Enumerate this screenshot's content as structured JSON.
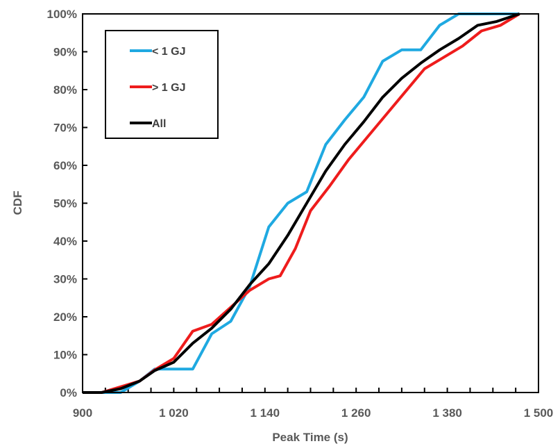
{
  "chart_data": {
    "type": "line",
    "title": "",
    "xlabel": "Peak Time (s)",
    "ylabel": "CDF",
    "xlim": [
      900,
      1500
    ],
    "ylim": [
      0,
      1
    ],
    "grid": false,
    "legend_position": "top-left",
    "x_ticks": [
      900,
      1020,
      1140,
      1260,
      1380,
      1500
    ],
    "x_tick_labels": [
      "900",
      "1 020",
      "1 140",
      "1 260",
      "1 380",
      "1 500"
    ],
    "y_ticks": [
      0,
      0.1,
      0.2,
      0.3,
      0.4,
      0.5,
      0.6,
      0.7,
      0.8,
      0.9,
      1.0
    ],
    "y_tick_labels": [
      "0%",
      "10%",
      "20%",
      "30%",
      "40%",
      "50%",
      "60%",
      "70%",
      "80%",
      "90%",
      "100%"
    ],
    "series": [
      {
        "name": "< 1 GJ",
        "color": "#1fa9e1",
        "points": [
          [
            900,
            0
          ],
          [
            925,
            0
          ],
          [
            950,
            0
          ],
          [
            975,
            0.03
          ],
          [
            995,
            0.062
          ],
          [
            1020,
            0.062
          ],
          [
            1045,
            0.062
          ],
          [
            1070,
            0.155
          ],
          [
            1095,
            0.188
          ],
          [
            1120,
            0.28
          ],
          [
            1145,
            0.437
          ],
          [
            1170,
            0.5
          ],
          [
            1195,
            0.53
          ],
          [
            1220,
            0.655
          ],
          [
            1245,
            0.72
          ],
          [
            1270,
            0.78
          ],
          [
            1295,
            0.875
          ],
          [
            1320,
            0.905
          ],
          [
            1345,
            0.905
          ],
          [
            1370,
            0.97
          ],
          [
            1395,
            1.0
          ],
          [
            1420,
            1.0
          ],
          [
            1445,
            1.0
          ],
          [
            1475,
            1.0
          ]
        ]
      },
      {
        "name": "> 1 GJ",
        "color": "#ee1c1c",
        "points": [
          [
            900,
            0
          ],
          [
            925,
            0
          ],
          [
            950,
            0.015
          ],
          [
            975,
            0.03
          ],
          [
            995,
            0.06
          ],
          [
            1020,
            0.09
          ],
          [
            1045,
            0.162
          ],
          [
            1070,
            0.18
          ],
          [
            1095,
            0.225
          ],
          [
            1120,
            0.27
          ],
          [
            1145,
            0.3
          ],
          [
            1160,
            0.308
          ],
          [
            1180,
            0.38
          ],
          [
            1200,
            0.48
          ],
          [
            1225,
            0.545
          ],
          [
            1250,
            0.615
          ],
          [
            1275,
            0.675
          ],
          [
            1300,
            0.735
          ],
          [
            1325,
            0.795
          ],
          [
            1350,
            0.855
          ],
          [
            1375,
            0.885
          ],
          [
            1400,
            0.915
          ],
          [
            1425,
            0.955
          ],
          [
            1450,
            0.97
          ],
          [
            1475,
            1.0
          ]
        ]
      },
      {
        "name": "All",
        "color": "#000000",
        "points": [
          [
            900,
            0
          ],
          [
            925,
            0
          ],
          [
            950,
            0.01
          ],
          [
            975,
            0.03
          ],
          [
            995,
            0.058
          ],
          [
            1020,
            0.08
          ],
          [
            1045,
            0.13
          ],
          [
            1070,
            0.17
          ],
          [
            1095,
            0.22
          ],
          [
            1120,
            0.285
          ],
          [
            1145,
            0.34
          ],
          [
            1170,
            0.415
          ],
          [
            1195,
            0.5
          ],
          [
            1220,
            0.585
          ],
          [
            1245,
            0.655
          ],
          [
            1270,
            0.715
          ],
          [
            1295,
            0.78
          ],
          [
            1320,
            0.83
          ],
          [
            1345,
            0.87
          ],
          [
            1370,
            0.905
          ],
          [
            1395,
            0.935
          ],
          [
            1420,
            0.97
          ],
          [
            1445,
            0.98
          ],
          [
            1475,
            1.0
          ]
        ]
      }
    ]
  }
}
